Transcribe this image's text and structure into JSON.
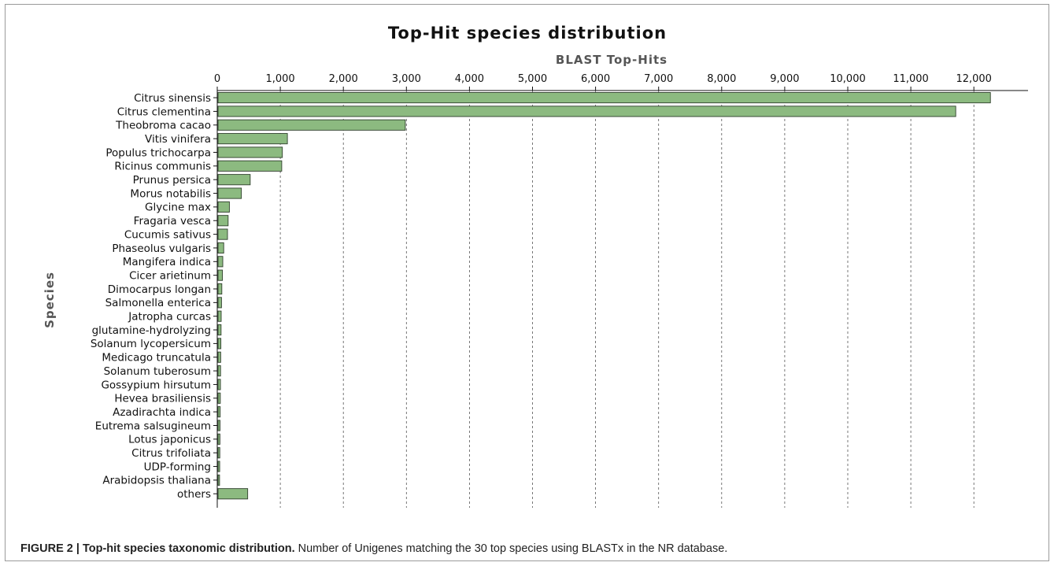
{
  "chart_data": {
    "type": "bar",
    "orientation": "horizontal",
    "title": "Top-Hit species distribution",
    "xlabel": "BLAST Top-Hits",
    "ylabel": "Species",
    "xlim": [
      0,
      12800
    ],
    "xticks": [
      0,
      1000,
      2000,
      3000,
      4000,
      5000,
      6000,
      7000,
      8000,
      9000,
      10000,
      11000,
      12000
    ],
    "xtick_labels": [
      "0",
      "1,000",
      "2,000",
      "3,000",
      "4,000",
      "5,000",
      "6,000",
      "7,000",
      "8,000",
      "9,000",
      "10,000",
      "11,000",
      "12,000"
    ],
    "grid": "vertical dashed",
    "categories": [
      "Citrus sinensis",
      "Citrus clementina",
      "Theobroma cacao",
      "Vitis vinifera",
      "Populus trichocarpa",
      "Ricinus communis",
      "Prunus persica",
      "Morus notabilis",
      "Glycine max",
      "Fragaria vesca",
      "Cucumis sativus",
      "Phaseolus vulgaris",
      "Mangifera indica",
      "Cicer arietinum",
      "Dimocarpus longan",
      "Salmonella enterica",
      "Jatropha curcas",
      "glutamine-hydrolyzing",
      "Solanum lycopersicum",
      "Medicago truncatula",
      "Solanum tuberosum",
      "Gossypium hirsutum",
      "Hevea brasiliensis",
      "Azadirachta indica",
      "Eutrema salsugineum",
      "Lotus japonicus",
      "Citrus trifoliata",
      "UDP-forming",
      "Arabidopsis thaliana",
      "others"
    ],
    "values": [
      12250,
      11700,
      2970,
      1100,
      1020,
      1010,
      510,
      370,
      180,
      160,
      150,
      90,
      75,
      70,
      60,
      55,
      50,
      48,
      45,
      42,
      40,
      38,
      36,
      34,
      32,
      30,
      28,
      26,
      24,
      470
    ]
  },
  "caption": {
    "bold": "FIGURE 2 | Top-hit species taxonomic distribution.",
    "text": " Number of Unigenes matching the 30 top species using BLASTx in the NR database."
  },
  "colors": {
    "bar_fill": "#8cba80",
    "bar_stroke": "#2f3f2c"
  }
}
